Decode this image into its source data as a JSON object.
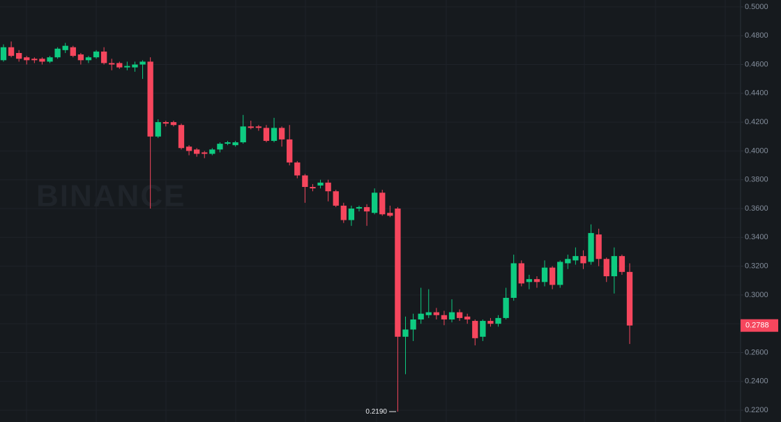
{
  "chart_data": {
    "type": "candlestick",
    "watermark": "BINANCE",
    "up_color": "#0ecb81",
    "down_color": "#f6465d",
    "grid": true,
    "ylim": [
      0.2118,
      0.5048
    ],
    "yticks": [
      {
        "value": 0.22,
        "label": "0.2200"
      },
      {
        "value": 0.24,
        "label": "0.2400"
      },
      {
        "value": 0.26,
        "label": "0.2600"
      },
      {
        "value": 0.28,
        "label": "0.2800"
      },
      {
        "value": 0.3,
        "label": "0.3000"
      },
      {
        "value": 0.32,
        "label": "0.3200"
      },
      {
        "value": 0.34,
        "label": "0.3400"
      },
      {
        "value": 0.36,
        "label": "0.3600"
      },
      {
        "value": 0.38,
        "label": "0.3800"
      },
      {
        "value": 0.4,
        "label": "0.4000"
      },
      {
        "value": 0.42,
        "label": "0.4200"
      },
      {
        "value": 0.44,
        "label": "0.4400"
      },
      {
        "value": 0.46,
        "label": "0.4600"
      },
      {
        "value": 0.48,
        "label": "0.4800"
      },
      {
        "value": 0.5,
        "label": "0.5000"
      }
    ],
    "last_price": {
      "value": 0.2788,
      "label": "0.2788"
    },
    "low_marker": {
      "value": 0.219,
      "label": "0.2190"
    },
    "open": [
      0.463,
      0.472,
      0.468,
      0.465,
      0.464,
      0.464,
      0.462,
      0.465,
      0.47,
      0.472,
      0.467,
      0.463,
      0.465,
      0.469,
      0.461,
      0.461,
      0.458,
      0.458,
      0.46,
      0.462,
      0.41,
      0.42,
      0.42,
      0.418,
      0.403,
      0.401,
      0.399,
      0.398,
      0.401,
      0.405,
      0.404,
      0.406,
      0.417,
      0.417,
      0.416,
      0.407,
      0.416,
      0.408,
      0.392,
      0.383,
      0.375,
      0.376,
      0.378,
      0.372,
      0.362,
      0.352,
      0.36,
      0.361,
      0.357,
      0.371,
      0.357,
      0.36,
      0.271,
      0.276,
      0.283,
      0.286,
      0.288,
      0.286,
      0.283,
      0.288,
      0.285,
      0.282,
      0.271,
      0.282,
      0.28,
      0.284,
      0.298,
      0.322,
      0.309,
      0.311,
      0.309,
      0.319,
      0.307,
      0.322,
      0.324,
      0.327,
      0.323,
      0.342,
      0.325,
      0.313,
      0.327,
      0.316
    ],
    "high": [
      0.474,
      0.476,
      0.47,
      0.466,
      0.465,
      0.465,
      0.466,
      0.472,
      0.475,
      0.473,
      0.468,
      0.466,
      0.47,
      0.472,
      0.464,
      0.462,
      0.462,
      0.462,
      0.463,
      0.465,
      0.422,
      0.421,
      0.421,
      0.419,
      0.404,
      0.402,
      0.4,
      0.402,
      0.406,
      0.407,
      0.407,
      0.425,
      0.421,
      0.418,
      0.418,
      0.423,
      0.417,
      0.418,
      0.393,
      0.384,
      0.377,
      0.38,
      0.38,
      0.373,
      0.364,
      0.362,
      0.362,
      0.363,
      0.374,
      0.373,
      0.362,
      0.361,
      0.285,
      0.287,
      0.305,
      0.304,
      0.291,
      0.289,
      0.297,
      0.29,
      0.287,
      0.283,
      0.283,
      0.284,
      0.286,
      0.305,
      0.328,
      0.324,
      0.314,
      0.313,
      0.324,
      0.32,
      0.324,
      0.328,
      0.333,
      0.331,
      0.349,
      0.346,
      0.326,
      0.333,
      0.328,
      0.322
    ],
    "low": [
      0.462,
      0.465,
      0.462,
      0.46,
      0.461,
      0.46,
      0.461,
      0.464,
      0.468,
      0.465,
      0.46,
      0.461,
      0.464,
      0.46,
      0.456,
      0.457,
      0.456,
      0.455,
      0.45,
      0.36,
      0.409,
      0.417,
      0.417,
      0.401,
      0.397,
      0.396,
      0.395,
      0.397,
      0.399,
      0.404,
      0.403,
      0.405,
      0.415,
      0.414,
      0.406,
      0.406,
      0.403,
      0.39,
      0.381,
      0.364,
      0.372,
      0.374,
      0.365,
      0.361,
      0.35,
      0.348,
      0.358,
      0.348,
      0.356,
      0.355,
      0.354,
      0.219,
      0.245,
      0.268,
      0.28,
      0.284,
      0.283,
      0.279,
      0.281,
      0.282,
      0.28,
      0.265,
      0.268,
      0.278,
      0.278,
      0.283,
      0.296,
      0.306,
      0.304,
      0.305,
      0.306,
      0.304,
      0.305,
      0.318,
      0.321,
      0.318,
      0.321,
      0.32,
      0.309,
      0.301,
      0.314,
      0.266
    ],
    "close": [
      0.472,
      0.466,
      0.464,
      0.463,
      0.463,
      0.462,
      0.465,
      0.471,
      0.473,
      0.466,
      0.463,
      0.465,
      0.469,
      0.461,
      0.46,
      0.458,
      0.459,
      0.46,
      0.462,
      0.41,
      0.42,
      0.419,
      0.418,
      0.402,
      0.4,
      0.398,
      0.398,
      0.401,
      0.405,
      0.406,
      0.406,
      0.417,
      0.416,
      0.416,
      0.407,
      0.416,
      0.408,
      0.392,
      0.383,
      0.375,
      0.374,
      0.378,
      0.372,
      0.362,
      0.352,
      0.36,
      0.361,
      0.358,
      0.371,
      0.356,
      0.355,
      0.271,
      0.276,
      0.283,
      0.287,
      0.288,
      0.286,
      0.283,
      0.288,
      0.284,
      0.283,
      0.27,
      0.282,
      0.28,
      0.284,
      0.298,
      0.322,
      0.308,
      0.311,
      0.309,
      0.319,
      0.307,
      0.323,
      0.325,
      0.327,
      0.322,
      0.343,
      0.325,
      0.313,
      0.327,
      0.316,
      0.2788
    ]
  }
}
